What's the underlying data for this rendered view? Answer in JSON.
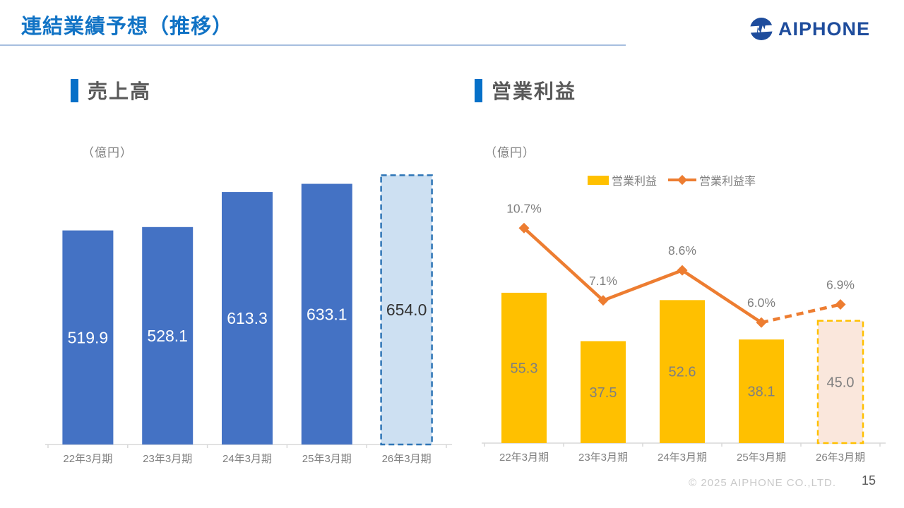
{
  "header": {
    "title": "連結業績予想（推移）",
    "title_color": "#1173C5",
    "rule_color": "#A7BEDF",
    "logo_text": "AIPHONE",
    "logo_color": "#1E4C9C"
  },
  "footer": {
    "copyright": "© 2025 AIPHONE CO.,LTD.",
    "page_number": "15"
  },
  "section_marker_color": "#0670C8",
  "chart_data": [
    {
      "type": "bar",
      "title": "売上高",
      "unit_label": "（億円）",
      "categories": [
        "22年3月期",
        "23年3月期",
        "24年3月期",
        "25年3月期",
        "26年3月期"
      ],
      "values": [
        519.9,
        528.1,
        613.3,
        633.1,
        654.0
      ],
      "value_labels": [
        "519.9",
        "528.1",
        "613.3",
        "633.1",
        "654.0"
      ],
      "forecast_index": 4,
      "ylim": [
        0,
        670
      ],
      "grid": false,
      "colors": {
        "bar": "#4472C4",
        "forecast_fill": "#CDE0F2",
        "forecast_border": "#2E75B6",
        "value_label": "#FFFFFF",
        "forecast_value_label": "#333333",
        "axis": "#D9D9D9",
        "category_label": "#7F7F7F"
      }
    },
    {
      "type": "bar+line",
      "title": "営業利益",
      "unit_label": "（億円）",
      "legend_position": "top-right",
      "legend": [
        {
          "label": "営業利益",
          "type": "bar",
          "color": "#FFC000"
        },
        {
          "label": "営業利益率",
          "type": "line",
          "color": "#ED7D31"
        }
      ],
      "categories": [
        "22年3月期",
        "23年3月期",
        "24年3月期",
        "25年3月期",
        "26年3月期"
      ],
      "series": [
        {
          "name": "営業利益",
          "type": "bar",
          "values": [
            55.3,
            37.5,
            52.6,
            38.1,
            45.0
          ],
          "value_labels": [
            "55.3",
            "37.5",
            "52.6",
            "38.1",
            "45.0"
          ]
        },
        {
          "name": "営業利益率",
          "type": "line",
          "values": [
            10.7,
            7.1,
            8.6,
            6.0,
            6.9
          ],
          "point_labels": [
            "10.7%",
            "7.1%",
            "8.6%",
            "6.0%",
            "6.9%"
          ]
        }
      ],
      "forecast_index": 4,
      "ylim": [
        0,
        102
      ],
      "line_ylim": [
        0,
        13.8
      ],
      "grid": false,
      "colors": {
        "bar": "#FFC000",
        "forecast_fill": "#FAE7DC",
        "forecast_border": "#FFC000",
        "value_label": "#7F7F7F",
        "forecast_value_label": "#7F7F7F",
        "line": "#ED7D31",
        "point_label": "#7F7F7F",
        "axis": "#D9D9D9",
        "category_label": "#7F7F7F"
      }
    }
  ]
}
